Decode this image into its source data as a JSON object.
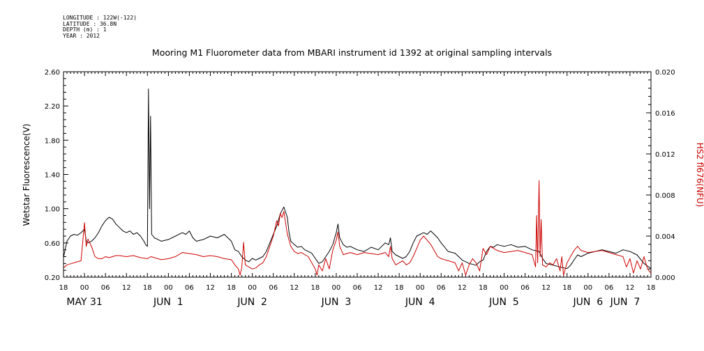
{
  "header": {
    "meta_lines": [
      "LONGITUDE : 122W(-122)",
      "LATITUDE : 36.8N",
      "DEPTH (m) : 1",
      "YEAR : 2012"
    ]
  },
  "chart_data": {
    "type": "line",
    "title": "Mooring M1 Fluorometer data from MBARI instrument id 1392 at original sampling intervals",
    "xlabel": "",
    "ylabel": "Wetstar Fluorescence(V)",
    "ylabel_right": "HS2 fl676(NFU)",
    "x_unit": "hours since MAY 30 18:00",
    "xlim": [
      0,
      168
    ],
    "ylim": [
      0.2,
      2.6
    ],
    "ylim_right": [
      0.0,
      0.02
    ],
    "yticks": [
      "0.20",
      "0.60",
      "1.00",
      "1.40",
      "1.80",
      "2.20",
      "2.60"
    ],
    "yticks_right": [
      "0.000",
      "0.004",
      "0.008",
      "0.012",
      "0.016",
      "0.020"
    ],
    "xtick_hours": [
      "18",
      "00",
      "06",
      "12",
      "18",
      "00",
      "06",
      "12",
      "18",
      "00",
      "06",
      "12",
      "18",
      "00",
      "06",
      "12",
      "18",
      "00",
      "06",
      "12",
      "18",
      "00",
      "06",
      "12",
      "18",
      "00",
      "06",
      "12",
      "18"
    ],
    "day_labels": [
      {
        "label": "MAY 31",
        "hour": 6
      },
      {
        "label": "JUN  1",
        "hour": 30
      },
      {
        "label": "JUN  2",
        "hour": 54
      },
      {
        "label": "JUN  3",
        "hour": 78
      },
      {
        "label": "JUN  4",
        "hour": 102
      },
      {
        "label": "JUN  5",
        "hour": 126
      },
      {
        "label": "JUN  6",
        "hour": 150
      },
      {
        "label": "JUN  7",
        "hour": 174
      }
    ],
    "grid": false,
    "series": [
      {
        "name": "Wetstar Fluorescence(V)",
        "axis": "left",
        "color": "#000000",
        "points": [
          [
            0,
            0.43
          ],
          [
            1,
            0.62
          ],
          [
            2,
            0.68
          ],
          [
            3,
            0.7
          ],
          [
            4,
            0.69
          ],
          [
            5,
            0.72
          ],
          [
            6,
            0.76
          ],
          [
            6.5,
            0.62
          ],
          [
            7,
            0.6
          ],
          [
            8,
            0.62
          ],
          [
            9,
            0.66
          ],
          [
            10,
            0.72
          ],
          [
            11,
            0.8
          ],
          [
            12,
            0.86
          ],
          [
            13,
            0.9
          ],
          [
            14,
            0.88
          ],
          [
            15,
            0.82
          ],
          [
            16,
            0.78
          ],
          [
            17,
            0.74
          ],
          [
            18,
            0.72
          ],
          [
            19,
            0.74
          ],
          [
            20,
            0.7
          ],
          [
            21,
            0.72
          ],
          [
            22,
            0.68
          ],
          [
            23,
            0.62
          ],
          [
            23.5,
            0.58
          ],
          [
            24,
            0.56
          ],
          [
            24.3,
            2.4
          ],
          [
            24.6,
            1.0
          ],
          [
            24.9,
            2.08
          ],
          [
            25.2,
            0.7
          ],
          [
            26,
            0.66
          ],
          [
            27,
            0.64
          ],
          [
            28,
            0.62
          ],
          [
            30,
            0.64
          ],
          [
            32,
            0.68
          ],
          [
            34,
            0.72
          ],
          [
            35,
            0.7
          ],
          [
            36,
            0.74
          ],
          [
            37,
            0.66
          ],
          [
            38,
            0.62
          ],
          [
            40,
            0.64
          ],
          [
            42,
            0.68
          ],
          [
            44,
            0.66
          ],
          [
            46,
            0.7
          ],
          [
            48,
            0.62
          ],
          [
            49,
            0.52
          ],
          [
            50,
            0.5
          ],
          [
            51,
            0.44
          ],
          [
            52,
            0.4
          ],
          [
            53,
            0.38
          ],
          [
            54,
            0.42
          ],
          [
            55,
            0.4
          ],
          [
            56,
            0.42
          ],
          [
            57,
            0.44
          ],
          [
            58,
            0.5
          ],
          [
            59,
            0.6
          ],
          [
            60,
            0.7
          ],
          [
            61,
            0.8
          ],
          [
            62,
            0.94
          ],
          [
            63,
            1.02
          ],
          [
            64,
            0.9
          ],
          [
            64.5,
            0.72
          ],
          [
            65,
            0.62
          ],
          [
            66,
            0.58
          ],
          [
            67,
            0.55
          ],
          [
            68,
            0.56
          ],
          [
            69,
            0.52
          ],
          [
            70,
            0.5
          ],
          [
            71,
            0.48
          ],
          [
            72,
            0.42
          ],
          [
            73,
            0.36
          ],
          [
            74,
            0.38
          ],
          [
            75,
            0.44
          ],
          [
            76,
            0.5
          ],
          [
            77,
            0.58
          ],
          [
            78,
            0.72
          ],
          [
            78.5,
            0.82
          ],
          [
            79,
            0.66
          ],
          [
            80,
            0.58
          ],
          [
            81,
            0.55
          ],
          [
            82,
            0.56
          ],
          [
            84,
            0.52
          ],
          [
            86,
            0.5
          ],
          [
            88,
            0.55
          ],
          [
            90,
            0.52
          ],
          [
            92,
            0.6
          ],
          [
            93,
            0.58
          ],
          [
            93.5,
            0.66
          ],
          [
            94,
            0.5
          ],
          [
            95,
            0.46
          ],
          [
            96,
            0.44
          ],
          [
            97,
            0.42
          ],
          [
            98,
            0.44
          ],
          [
            99,
            0.5
          ],
          [
            100,
            0.6
          ],
          [
            101,
            0.68
          ],
          [
            102,
            0.7
          ],
          [
            103,
            0.72
          ],
          [
            104,
            0.7
          ],
          [
            105,
            0.74
          ],
          [
            106,
            0.7
          ],
          [
            107,
            0.66
          ],
          [
            108,
            0.6
          ],
          [
            110,
            0.5
          ],
          [
            112,
            0.48
          ],
          [
            114,
            0.4
          ],
          [
            116,
            0.36
          ],
          [
            118,
            0.34
          ],
          [
            119,
            0.38
          ],
          [
            120,
            0.4
          ],
          [
            121,
            0.5
          ],
          [
            122,
            0.56
          ],
          [
            123,
            0.55
          ],
          [
            124,
            0.58
          ],
          [
            126,
            0.56
          ],
          [
            128,
            0.58
          ],
          [
            130,
            0.55
          ],
          [
            132,
            0.56
          ],
          [
            134,
            0.52
          ],
          [
            136,
            0.5
          ],
          [
            137,
            0.42
          ],
          [
            138,
            0.36
          ],
          [
            140,
            0.34
          ],
          [
            142,
            0.32
          ],
          [
            144,
            0.3
          ],
          [
            145,
            0.34
          ],
          [
            146,
            0.4
          ],
          [
            147,
            0.46
          ],
          [
            148,
            0.44
          ],
          [
            150,
            0.48
          ],
          [
            152,
            0.5
          ],
          [
            154,
            0.52
          ],
          [
            156,
            0.5
          ],
          [
            158,
            0.48
          ],
          [
            160,
            0.52
          ],
          [
            162,
            0.5
          ],
          [
            164,
            0.46
          ],
          [
            166,
            0.36
          ],
          [
            168,
            0.3
          ]
        ]
      },
      {
        "name": "HS2 fl676(NFU)",
        "axis": "right",
        "color": "#cc0000",
        "points": [
          [
            0,
            0.0009
          ],
          [
            1,
            0.0012
          ],
          [
            2,
            0.0013
          ],
          [
            3,
            0.0014
          ],
          [
            4,
            0.0015
          ],
          [
            5,
            0.0016
          ],
          [
            6,
            0.0053
          ],
          [
            6.5,
            0.003
          ],
          [
            7,
            0.0037
          ],
          [
            8,
            0.003
          ],
          [
            9,
            0.002
          ],
          [
            10,
            0.0018
          ],
          [
            11,
            0.0018
          ],
          [
            12,
            0.002
          ],
          [
            13,
            0.0019
          ],
          [
            14,
            0.002
          ],
          [
            15,
            0.0021
          ],
          [
            16,
            0.0021
          ],
          [
            18,
            0.002
          ],
          [
            20,
            0.0021
          ],
          [
            22,
            0.0019
          ],
          [
            24,
            0.0018
          ],
          [
            25,
            0.002
          ],
          [
            26,
            0.0019
          ],
          [
            28,
            0.0017
          ],
          [
            30,
            0.0018
          ],
          [
            32,
            0.002
          ],
          [
            34,
            0.0024
          ],
          [
            36,
            0.0023
          ],
          [
            38,
            0.0022
          ],
          [
            40,
            0.002
          ],
          [
            42,
            0.0021
          ],
          [
            44,
            0.002
          ],
          [
            46,
            0.0018
          ],
          [
            48,
            0.0017
          ],
          [
            49,
            0.0012
          ],
          [
            50,
            0.0008
          ],
          [
            50.5,
            0.0002
          ],
          [
            51,
            0.001
          ],
          [
            51.5,
            0.0034
          ],
          [
            52,
            0.0012
          ],
          [
            53,
            0.001
          ],
          [
            54,
            0.0008
          ],
          [
            55,
            0.0009
          ],
          [
            56,
            0.0012
          ],
          [
            57,
            0.0014
          ],
          [
            58,
            0.002
          ],
          [
            59,
            0.003
          ],
          [
            60,
            0.004
          ],
          [
            61,
            0.0055
          ],
          [
            61.5,
            0.005
          ],
          [
            62,
            0.0062
          ],
          [
            62.5,
            0.0058
          ],
          [
            63,
            0.0064
          ],
          [
            64,
            0.0042
          ],
          [
            65,
            0.003
          ],
          [
            66,
            0.0025
          ],
          [
            67,
            0.0023
          ],
          [
            68,
            0.0024
          ],
          [
            70,
            0.002
          ],
          [
            71,
            0.0014
          ],
          [
            72,
            0.0008
          ],
          [
            72.5,
            0.0002
          ],
          [
            73,
            0.0012
          ],
          [
            74,
            0.0006
          ],
          [
            75,
            0.0018
          ],
          [
            76,
            0.0008
          ],
          [
            77,
            0.0026
          ],
          [
            78,
            0.0036
          ],
          [
            78.5,
            0.0044
          ],
          [
            79,
            0.003
          ],
          [
            80,
            0.0022
          ],
          [
            82,
            0.0024
          ],
          [
            84,
            0.0022
          ],
          [
            86,
            0.0024
          ],
          [
            88,
            0.0023
          ],
          [
            90,
            0.0022
          ],
          [
            92,
            0.0024
          ],
          [
            93,
            0.002
          ],
          [
            93.5,
            0.003
          ],
          [
            94,
            0.0018
          ],
          [
            95,
            0.0012
          ],
          [
            96,
            0.0014
          ],
          [
            97,
            0.0016
          ],
          [
            98,
            0.0012
          ],
          [
            99,
            0.0014
          ],
          [
            100,
            0.002
          ],
          [
            101,
            0.0028
          ],
          [
            102,
            0.0036
          ],
          [
            103,
            0.004
          ],
          [
            104,
            0.0036
          ],
          [
            105,
            0.0032
          ],
          [
            106,
            0.0026
          ],
          [
            107,
            0.002
          ],
          [
            108,
            0.0018
          ],
          [
            110,
            0.0016
          ],
          [
            112,
            0.0014
          ],
          [
            113,
            0.0006
          ],
          [
            114,
            0.0014
          ],
          [
            115,
            0.0002
          ],
          [
            116,
            0.0012
          ],
          [
            117,
            0.0018
          ],
          [
            118,
            0.0014
          ],
          [
            119,
            0.0006
          ],
          [
            120,
            0.0028
          ],
          [
            121,
            0.0022
          ],
          [
            122,
            0.003
          ],
          [
            123,
            0.0028
          ],
          [
            124,
            0.0026
          ],
          [
            126,
            0.0024
          ],
          [
            128,
            0.0025
          ],
          [
            130,
            0.0026
          ],
          [
            132,
            0.0024
          ],
          [
            134,
            0.0022
          ],
          [
            135,
            0.001
          ],
          [
            135.3,
            0.006
          ],
          [
            135.6,
            0.0014
          ],
          [
            136,
            0.0094
          ],
          [
            136.3,
            0.002
          ],
          [
            136.6,
            0.0056
          ],
          [
            137,
            0.0012
          ],
          [
            138,
            0.001
          ],
          [
            139,
            0.0014
          ],
          [
            140,
            0.0012
          ],
          [
            141,
            0.0018
          ],
          [
            142,
            0.0006
          ],
          [
            142.5,
            0.002
          ],
          [
            143,
            0.0002
          ],
          [
            144,
            0.0014
          ],
          [
            145,
            0.002
          ],
          [
            146,
            0.0026
          ],
          [
            147,
            0.003
          ],
          [
            148,
            0.0026
          ],
          [
            150,
            0.0024
          ],
          [
            152,
            0.0025
          ],
          [
            154,
            0.0026
          ],
          [
            156,
            0.0024
          ],
          [
            158,
            0.0022
          ],
          [
            160,
            0.002
          ],
          [
            161,
            0.001
          ],
          [
            162,
            0.0018
          ],
          [
            163,
            0.0004
          ],
          [
            164,
            0.0016
          ],
          [
            165,
            0.0008
          ],
          [
            166,
            0.002
          ],
          [
            167,
            0.0008
          ],
          [
            168,
            0.0004
          ]
        ]
      }
    ]
  }
}
